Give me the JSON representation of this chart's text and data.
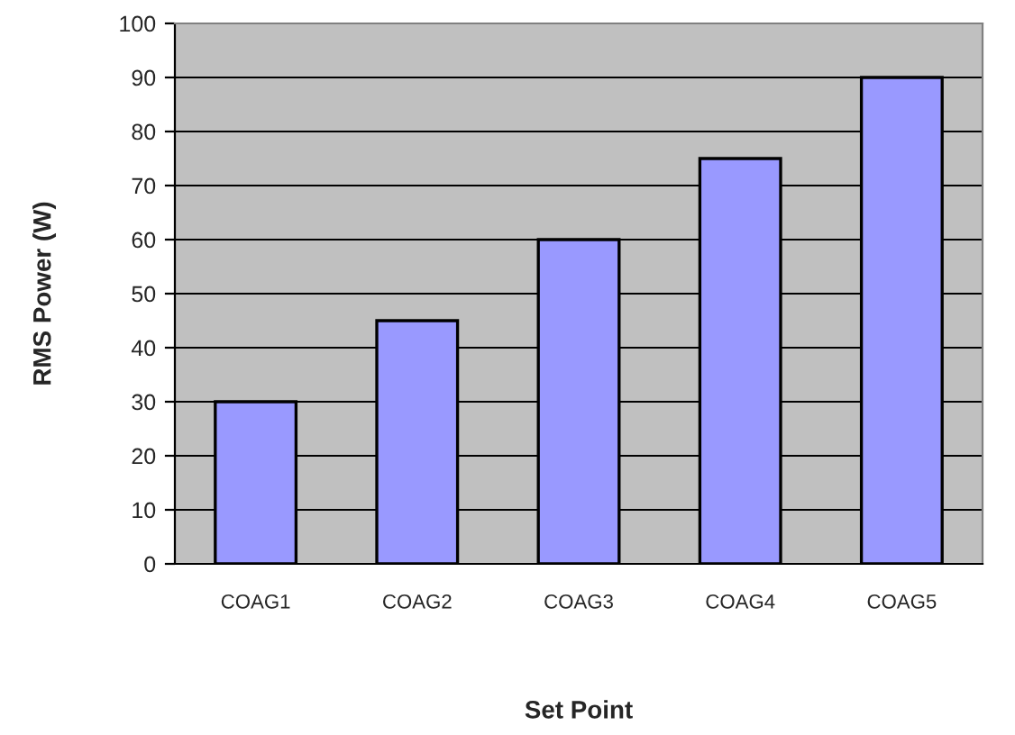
{
  "chart_data": {
    "type": "bar",
    "xlabel": "Set Point",
    "ylabel": "RMS Power (W)",
    "categories": [
      "COAG1",
      "COAG2",
      "COAG3",
      "COAG4",
      "COAG5"
    ],
    "values": [
      30,
      45,
      60,
      75,
      90
    ],
    "color": "#9999ff",
    "ylim": [
      0,
      100
    ],
    "yticks": [
      0,
      10,
      20,
      30,
      40,
      50,
      60,
      70,
      80,
      90,
      100
    ],
    "grid": "y",
    "legend": false
  }
}
